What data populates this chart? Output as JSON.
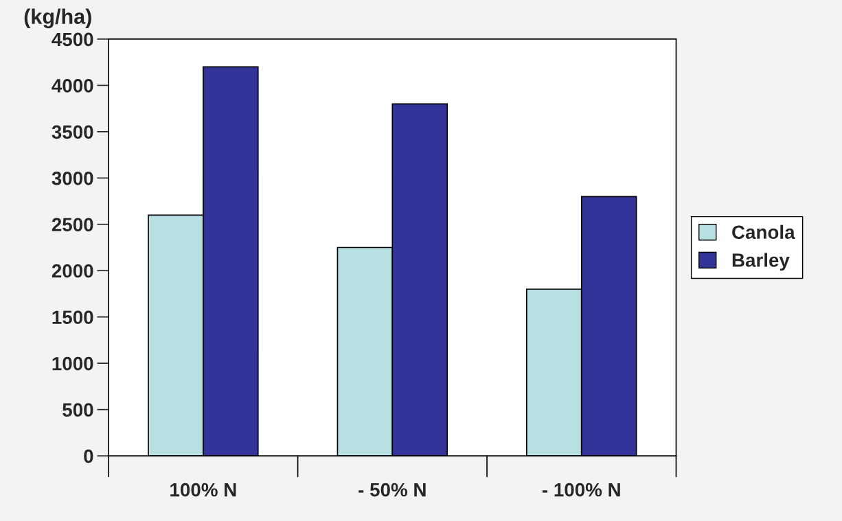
{
  "chart_data": {
    "type": "bar",
    "title": "(kg/ha)",
    "categories": [
      "100% N",
      "- 50% N",
      "- 100% N"
    ],
    "series": [
      {
        "name": "Canola",
        "color": "#b8e0e2",
        "values": [
          2600,
          2250,
          1800
        ]
      },
      {
        "name": "Barley",
        "color": "#333399",
        "values": [
          4200,
          3800,
          2800
        ]
      }
    ],
    "ylim": [
      0,
      4500
    ],
    "yticks": [
      0,
      500,
      1000,
      1500,
      2000,
      2500,
      3000,
      3500,
      4000,
      4500
    ],
    "grid": false,
    "legend": "right"
  }
}
